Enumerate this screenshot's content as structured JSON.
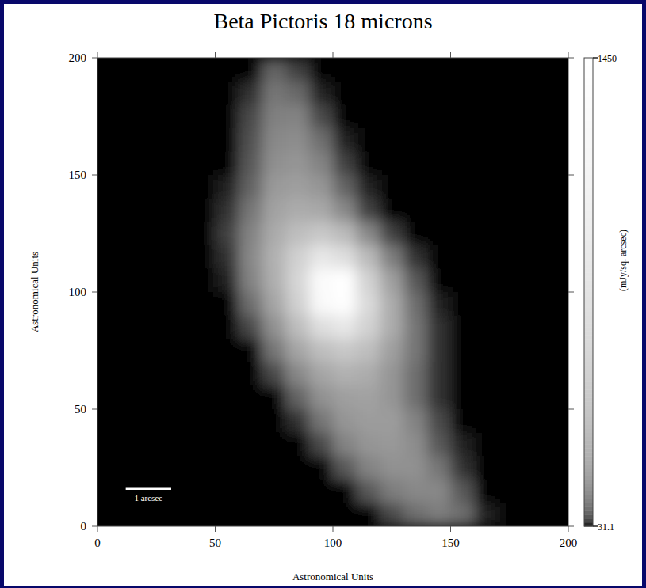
{
  "chart_data": {
    "type": "heatmap",
    "title": "Beta Pictoris 18 microns",
    "x_label": "Astronomical Units",
    "y_label": "Astronomical Units",
    "xlim": [
      0,
      200
    ],
    "ylim": [
      0,
      200
    ],
    "xticks": [
      0,
      50,
      100,
      150,
      200
    ],
    "yticks": [
      0,
      50,
      100,
      150,
      200
    ],
    "x": [
      5,
      15,
      25,
      35,
      45,
      55,
      65,
      75,
      85,
      95,
      105,
      115,
      125,
      135,
      145,
      155,
      165,
      175,
      185,
      195
    ],
    "y": [
      195,
      185,
      175,
      165,
      155,
      145,
      135,
      125,
      115,
      105,
      95,
      85,
      75,
      65,
      55,
      45,
      35,
      25,
      15,
      5
    ],
    "cells": [
      [
        31.1,
        31.1,
        31.1,
        31.1,
        31.1,
        31.1,
        31.1,
        70,
        45,
        31.1,
        31.1,
        31.1,
        31.1,
        31.1,
        31.1,
        31.1,
        31.1,
        31.1,
        31.1,
        31.1
      ],
      [
        31.1,
        31.1,
        31.1,
        31.1,
        31.1,
        31.1,
        40,
        90,
        75,
        35,
        31.1,
        31.1,
        31.1,
        31.1,
        31.1,
        31.1,
        31.1,
        31.1,
        31.1,
        31.1
      ],
      [
        31.1,
        31.1,
        31.1,
        31.1,
        31.1,
        31.1,
        50,
        105,
        110,
        50,
        31.1,
        31.1,
        31.1,
        31.1,
        31.1,
        31.1,
        31.1,
        31.1,
        31.1,
        31.1
      ],
      [
        31.1,
        31.1,
        31.1,
        31.1,
        31.1,
        31.1,
        55,
        120,
        130,
        80,
        35,
        31.1,
        31.1,
        31.1,
        31.1,
        31.1,
        31.1,
        31.1,
        31.1,
        31.1
      ],
      [
        31.1,
        31.1,
        31.1,
        31.1,
        31.1,
        31.1,
        60,
        135,
        150,
        110,
        45,
        31.1,
        31.1,
        31.1,
        31.1,
        31.1,
        31.1,
        31.1,
        31.1,
        31.1
      ],
      [
        31.1,
        31.1,
        31.1,
        31.1,
        31.1,
        35,
        70,
        160,
        180,
        150,
        70,
        35,
        31.1,
        31.1,
        31.1,
        31.1,
        31.1,
        31.1,
        31.1,
        31.1
      ],
      [
        31.1,
        31.1,
        31.1,
        31.1,
        31.1,
        40,
        90,
        190,
        230,
        210,
        120,
        45,
        31.1,
        31.1,
        31.1,
        31.1,
        31.1,
        31.1,
        31.1,
        31.1
      ],
      [
        31.1,
        31.1,
        31.1,
        31.1,
        31.1,
        45,
        110,
        220,
        330,
        400,
        300,
        120,
        45,
        31.1,
        31.1,
        31.1,
        31.1,
        31.1,
        31.1,
        31.1
      ],
      [
        31.1,
        31.1,
        31.1,
        31.1,
        31.1,
        40,
        120,
        250,
        480,
        800,
        650,
        300,
        100,
        40,
        31.1,
        31.1,
        31.1,
        31.1,
        31.1,
        31.1
      ],
      [
        31.1,
        31.1,
        31.1,
        31.1,
        31.1,
        35,
        110,
        240,
        550,
        1300,
        1450,
        500,
        180,
        60,
        31.1,
        31.1,
        31.1,
        31.1,
        31.1,
        31.1
      ],
      [
        31.1,
        31.1,
        31.1,
        31.1,
        31.1,
        31.1,
        80,
        200,
        480,
        1250,
        1400,
        600,
        230,
        80,
        35,
        31.1,
        31.1,
        31.1,
        31.1,
        31.1
      ],
      [
        31.1,
        31.1,
        31.1,
        31.1,
        31.1,
        31.1,
        50,
        140,
        320,
        650,
        800,
        500,
        230,
        90,
        40,
        31.1,
        31.1,
        31.1,
        31.1,
        31.1
      ],
      [
        31.1,
        31.1,
        31.1,
        31.1,
        31.1,
        31.1,
        31.1,
        90,
        200,
        330,
        400,
        330,
        180,
        90,
        40,
        31.1,
        31.1,
        31.1,
        31.1,
        31.1
      ],
      [
        31.1,
        31.1,
        31.1,
        31.1,
        31.1,
        31.1,
        31.1,
        50,
        120,
        200,
        250,
        230,
        150,
        80,
        40,
        31.1,
        31.1,
        31.1,
        31.1,
        31.1
      ],
      [
        31.1,
        31.1,
        31.1,
        31.1,
        31.1,
        31.1,
        31.1,
        31.1,
        70,
        140,
        180,
        190,
        150,
        80,
        40,
        31.1,
        31.1,
        31.1,
        31.1,
        31.1
      ],
      [
        31.1,
        31.1,
        31.1,
        31.1,
        31.1,
        31.1,
        31.1,
        31.1,
        40,
        90,
        150,
        170,
        170,
        110,
        50,
        31.1,
        31.1,
        31.1,
        31.1,
        31.1
      ],
      [
        31.1,
        31.1,
        31.1,
        31.1,
        31.1,
        31.1,
        31.1,
        31.1,
        31.1,
        50,
        110,
        150,
        160,
        130,
        60,
        35,
        31.1,
        31.1,
        31.1,
        31.1
      ],
      [
        31.1,
        31.1,
        31.1,
        31.1,
        31.1,
        31.1,
        31.1,
        31.1,
        31.1,
        31.1,
        60,
        110,
        140,
        140,
        90,
        40,
        31.1,
        31.1,
        31.1,
        31.1
      ],
      [
        31.1,
        31.1,
        31.1,
        31.1,
        31.1,
        31.1,
        31.1,
        31.1,
        31.1,
        31.1,
        31.1,
        60,
        100,
        120,
        120,
        60,
        31.1,
        31.1,
        31.1,
        31.1
      ],
      [
        31.1,
        31.1,
        31.1,
        31.1,
        31.1,
        31.1,
        31.1,
        31.1,
        31.1,
        31.1,
        31.1,
        31.1,
        50,
        80,
        100,
        80,
        35,
        31.1,
        31.1,
        31.1
      ]
    ],
    "colorbar": {
      "range": [
        31.1,
        1450
      ],
      "ticks": [
        31.1,
        1450
      ],
      "label": "(mJy/sq. arcsec)"
    },
    "scale_bar": {
      "label": "1 arcsec",
      "length": 19.3
    }
  }
}
